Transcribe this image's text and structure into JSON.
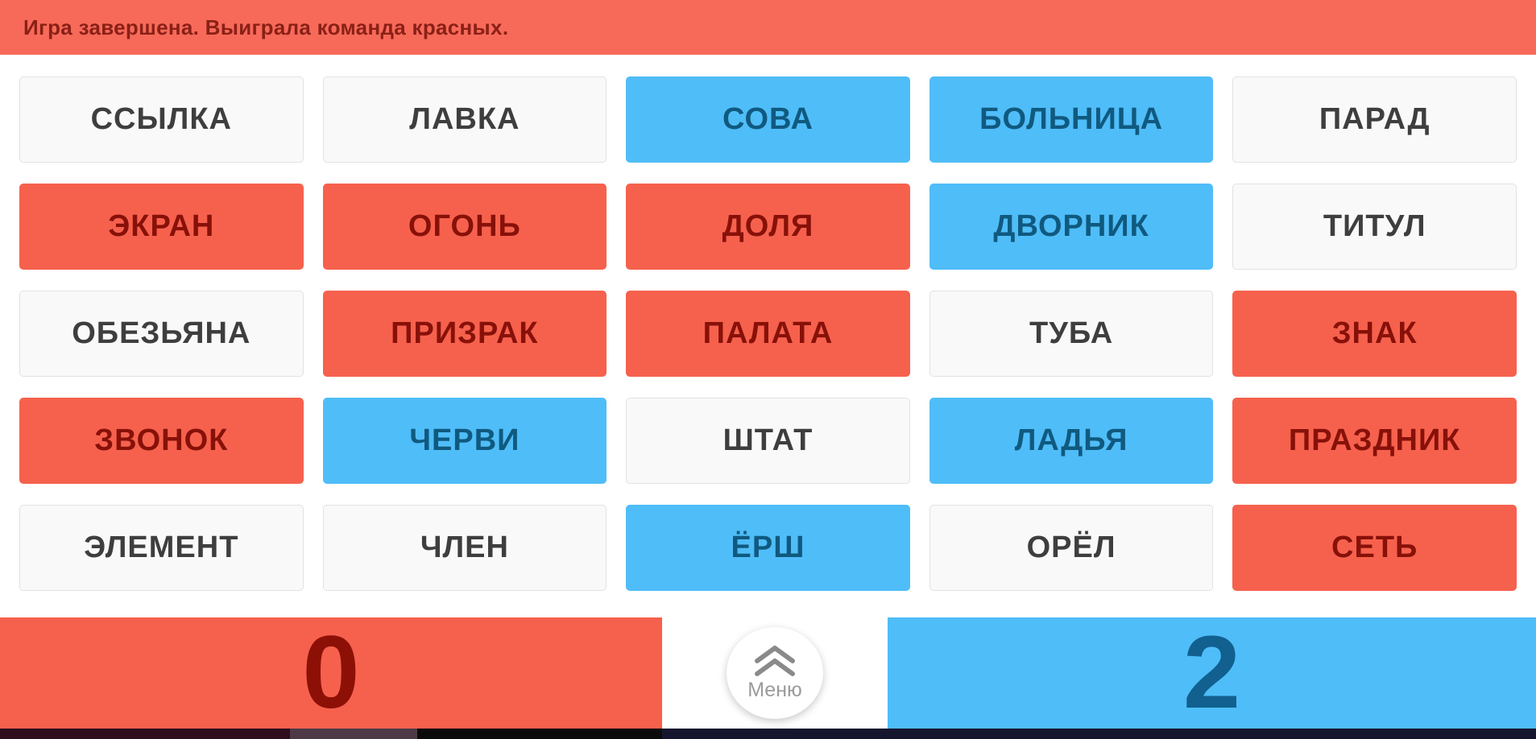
{
  "banner": {
    "text": "Игра завершена. Выиграла команда красных."
  },
  "board": {
    "cards": [
      {
        "word": "ССЫЛКА",
        "team": "neutral"
      },
      {
        "word": "ЛАВКА",
        "team": "neutral"
      },
      {
        "word": "СОВА",
        "team": "blue"
      },
      {
        "word": "БОЛЬНИЦА",
        "team": "blue"
      },
      {
        "word": "ПАРАД",
        "team": "neutral"
      },
      {
        "word": "ЭКРАН",
        "team": "red"
      },
      {
        "word": "ОГОНЬ",
        "team": "red"
      },
      {
        "word": "ДОЛЯ",
        "team": "red"
      },
      {
        "word": "ДВОРНИК",
        "team": "blue"
      },
      {
        "word": "ТИТУЛ",
        "team": "neutral"
      },
      {
        "word": "ОБЕЗЬЯНА",
        "team": "neutral"
      },
      {
        "word": "ПРИЗРАК",
        "team": "red"
      },
      {
        "word": "ПАЛАТА",
        "team": "red"
      },
      {
        "word": "ТУБА",
        "team": "neutral"
      },
      {
        "word": "ЗНАК",
        "team": "red"
      },
      {
        "word": "ЗВОНОК",
        "team": "red"
      },
      {
        "word": "ЧЕРВИ",
        "team": "blue"
      },
      {
        "word": "ШТАТ",
        "team": "neutral"
      },
      {
        "word": "ЛАДЬЯ",
        "team": "blue"
      },
      {
        "word": "ПРАЗДНИК",
        "team": "red"
      },
      {
        "word": "ЭЛЕМЕНТ",
        "team": "neutral"
      },
      {
        "word": "ЧЛЕН",
        "team": "neutral"
      },
      {
        "word": "ЁРШ",
        "team": "blue"
      },
      {
        "word": "ОРЁЛ",
        "team": "neutral"
      },
      {
        "word": "СЕТЬ",
        "team": "red"
      }
    ]
  },
  "scoreboard": {
    "red_score": "0",
    "blue_score": "2",
    "menu_label": "Меню"
  },
  "colors": {
    "banner_bg": "#f76a5a",
    "banner_text": "#8a2016",
    "red_card_bg": "#f6614d",
    "red_card_text": "#871109",
    "blue_card_bg": "#4fbdf8",
    "blue_card_text": "#10597f",
    "neutral_card_bg": "#f9f9f9",
    "neutral_card_text": "#3e3e3e",
    "red_score_text": "#8d1007",
    "blue_score_text": "#11608f",
    "menu_text": "#9b9b9b"
  }
}
